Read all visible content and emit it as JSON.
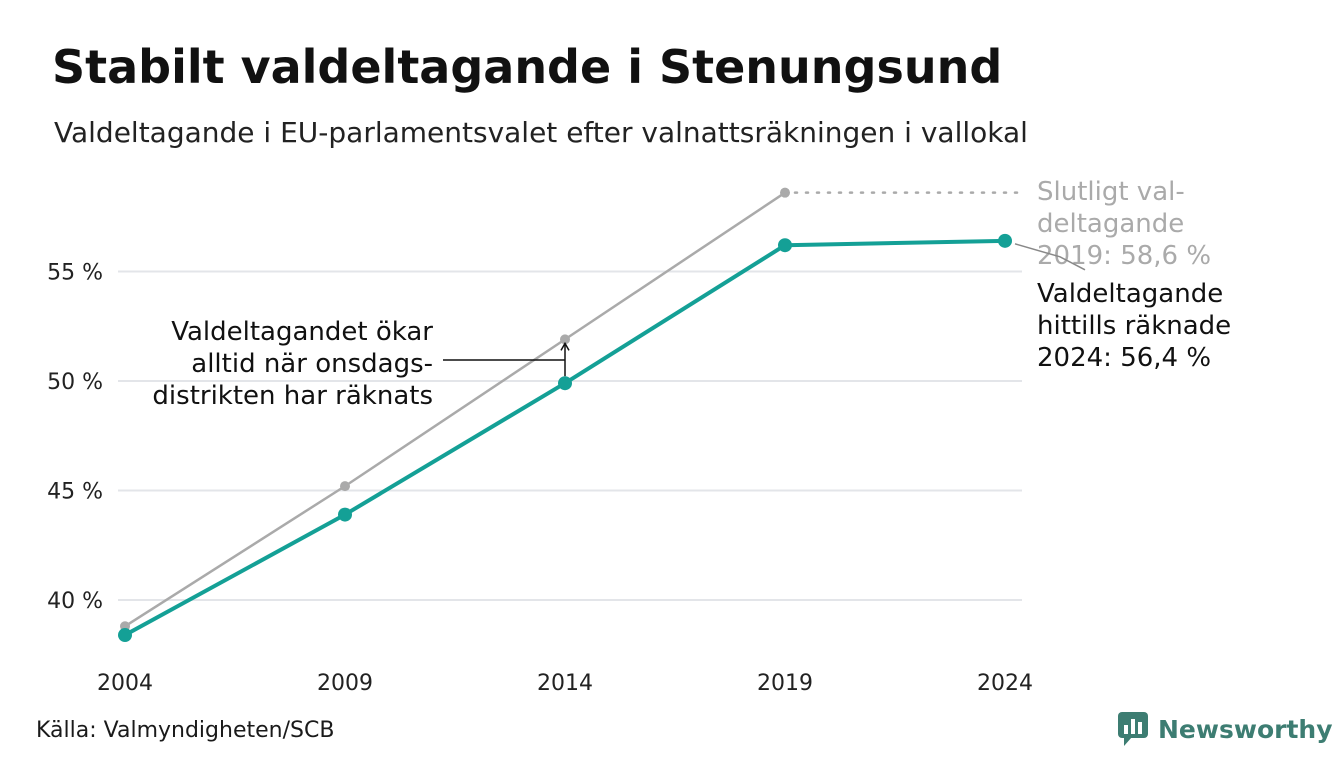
{
  "header": {
    "title": "Stabilt valdeltagande i Stenungsund",
    "subtitle": "Valdeltagande i EU-parlamentsvalet efter valnattsräkningen i vallokal"
  },
  "footer": {
    "source": "Källa: Valmyndigheten/SCB",
    "brand": "Newsworthy"
  },
  "colors": {
    "accent": "#14a096",
    "final": "#aaaaaa",
    "grid": "#e3e5e9",
    "annotation": "#111111"
  },
  "chart_data": {
    "type": "line",
    "x": [
      2004,
      2009,
      2014,
      2019,
      2024
    ],
    "x_tick_labels": [
      "2004",
      "2009",
      "2014",
      "2019",
      "2024"
    ],
    "y_ticks": [
      40,
      45,
      50,
      55
    ],
    "y_tick_labels": [
      "40 %",
      "45 %",
      "50 %",
      "55 %"
    ],
    "ylim": [
      37.5,
      59.5
    ],
    "grid": true,
    "series": [
      {
        "key": "final",
        "values": [
          38.8,
          45.2,
          51.9,
          58.6,
          null
        ],
        "color": "#aaaaaa",
        "dotted_extension_to": 2024
      },
      {
        "key": "counted",
        "values": [
          38.4,
          43.9,
          49.9,
          56.2,
          56.4
        ],
        "color": "#14a096"
      }
    ],
    "annotations": {
      "final_label": [
        "Slutligt val-",
        "deltagande",
        "2019: 58,6 %"
      ],
      "counted_label": [
        "Valdeltagande",
        "hittills räknade",
        "2024: 56,4 %"
      ],
      "wednesday_note": [
        "Valdeltagandet ökar",
        "alltid när onsdags-",
        "distrikten har räknats"
      ]
    }
  }
}
